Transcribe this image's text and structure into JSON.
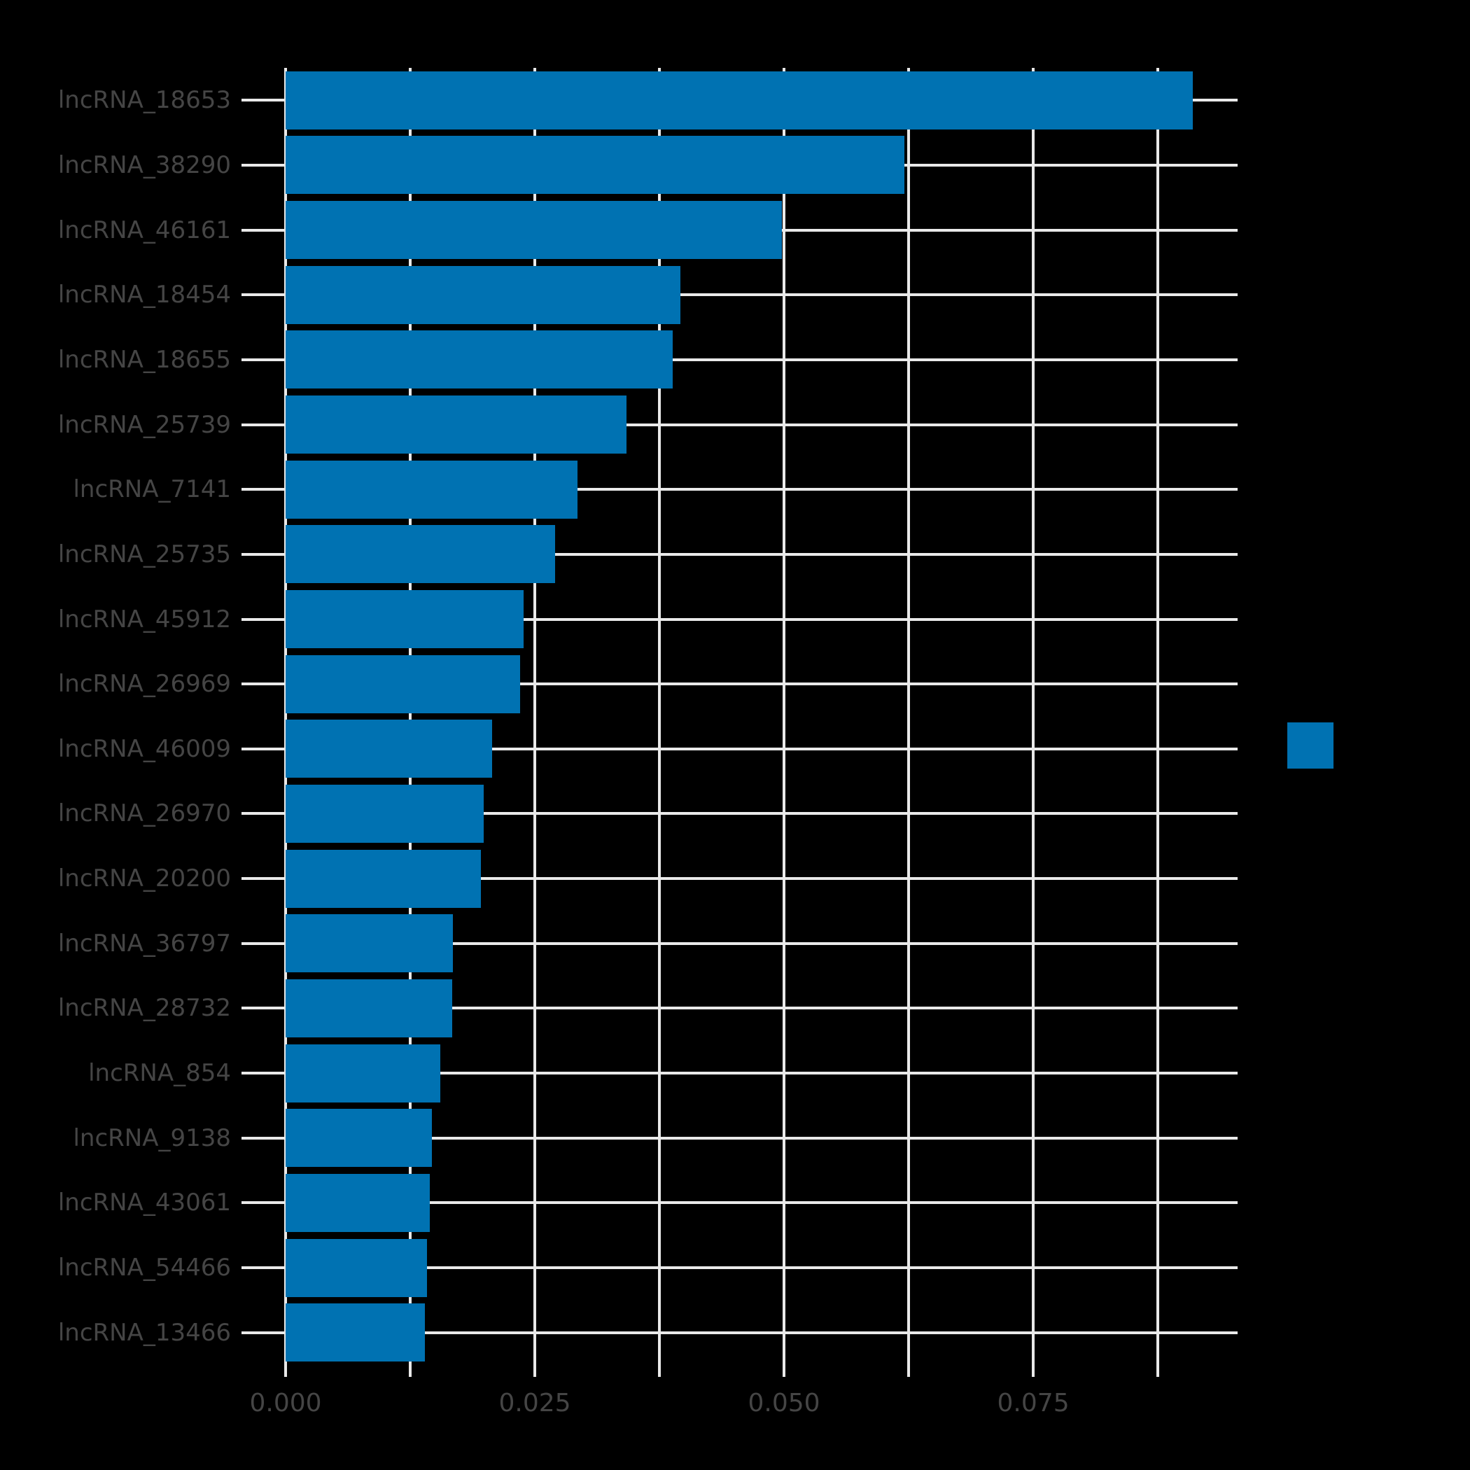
{
  "chart_data": {
    "type": "bar",
    "orientation": "horizontal",
    "title": "",
    "xlabel": "",
    "ylabel": "",
    "categories": [
      "lncRNA_18653",
      "lncRNA_38290",
      "lncRNA_46161",
      "lncRNA_18454",
      "lncRNA_18655",
      "lncRNA_25739",
      "lncRNA_7141",
      "lncRNA_25735",
      "lncRNA_45912",
      "lncRNA_26969",
      "lncRNA_46009",
      "lncRNA_26970",
      "lncRNA_20200",
      "lncRNA_36797",
      "lncRNA_28732",
      "lncRNA_854",
      "lncRNA_9138",
      "lncRNA_43061",
      "lncRNA_54466",
      "lncRNA_13466"
    ],
    "values": [
      0.091,
      0.0621,
      0.0498,
      0.0396,
      0.0388,
      0.0342,
      0.0293,
      0.027,
      0.0239,
      0.0235,
      0.0207,
      0.0199,
      0.0196,
      0.0168,
      0.0167,
      0.0155,
      0.0147,
      0.0145,
      0.0142,
      0.014
    ],
    "x_major_ticks": {
      "values": [
        0,
        0.025,
        0.05,
        0.075
      ],
      "labels": [
        "0.000",
        "0.025",
        "0.050",
        "0.075"
      ]
    },
    "x_minor_grid_step": 0.0125,
    "xlim": [
      0,
      0.0955
    ],
    "grid": {
      "vertical": "every 0.0125, white on black",
      "horizontal": "one per category row, white on black"
    },
    "legend": {
      "position": "right-middle",
      "swatch_color": "#0072b2",
      "label": ""
    }
  },
  "style": {
    "background_color": "#000000",
    "bar_color": "#0072b2",
    "grid_color": "#e9e9e9",
    "text_color": "#454545"
  }
}
